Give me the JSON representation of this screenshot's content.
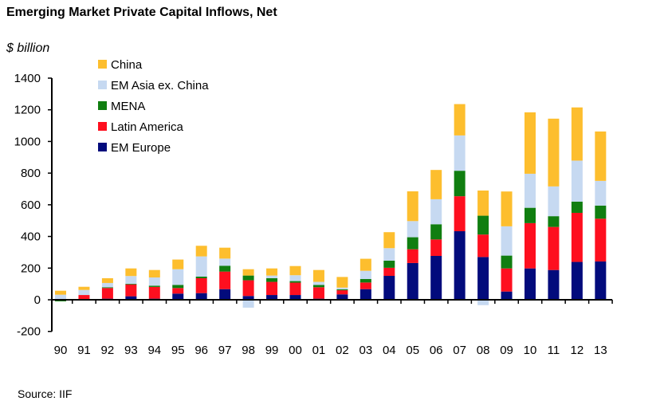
{
  "chart_data": {
    "type": "bar",
    "stacked": true,
    "title": "Emerging Market Private Capital Inflows, Net",
    "ylabel": "$ billion",
    "xlabel": "",
    "ylim": [
      -200,
      1400
    ],
    "yticks": [
      -200,
      0,
      200,
      400,
      600,
      800,
      1000,
      1200,
      1400
    ],
    "legend_position": "top-left",
    "categories": [
      "90",
      "91",
      "92",
      "93",
      "94",
      "95",
      "96",
      "97",
      "98",
      "99",
      "00",
      "01",
      "02",
      "03",
      "04",
      "05",
      "06",
      "07",
      "08",
      "09",
      "10",
      "11",
      "12",
      "13"
    ],
    "series": [
      {
        "name": "EM Europe",
        "color": "#020b7c",
        "values": [
          0,
          0,
          7,
          22,
          7,
          39,
          42,
          67,
          24,
          30,
          30,
          7,
          34,
          67,
          151,
          232,
          277,
          433,
          270,
          52,
          198,
          188,
          239,
          242
        ]
      },
      {
        "name": "Latin America",
        "color": "#fe0f1f",
        "values": [
          3,
          30,
          67,
          75,
          74,
          35,
          94,
          111,
          99,
          83,
          78,
          72,
          26,
          42,
          51,
          87,
          104,
          221,
          142,
          146,
          286,
          272,
          310,
          270
        ]
      },
      {
        "name": "MENA",
        "color": "#107e10",
        "values": [
          -10,
          0,
          5,
          4,
          8,
          20,
          10,
          37,
          30,
          23,
          10,
          15,
          6,
          22,
          45,
          76,
          96,
          161,
          119,
          81,
          97,
          68,
          71,
          83
        ]
      },
      {
        "name": "EM Asia ex. China",
        "color": "#c6d9f1",
        "values": [
          29,
          32,
          27,
          49,
          52,
          99,
          128,
          45,
          -50,
          17,
          37,
          19,
          11,
          52,
          79,
          102,
          158,
          223,
          -34,
          185,
          215,
          188,
          259,
          156
        ]
      },
      {
        "name": "China",
        "color": "#fdbe2e",
        "values": [
          25,
          20,
          30,
          48,
          47,
          61,
          67,
          69,
          40,
          45,
          58,
          75,
          67,
          76,
          101,
          188,
          185,
          198,
          159,
          220,
          388,
          428,
          336,
          312
        ]
      }
    ],
    "legend_order": [
      "China",
      "EM Asia ex. China",
      "MENA",
      "Latin America",
      "EM Europe"
    ]
  },
  "source": "Source: IIF"
}
